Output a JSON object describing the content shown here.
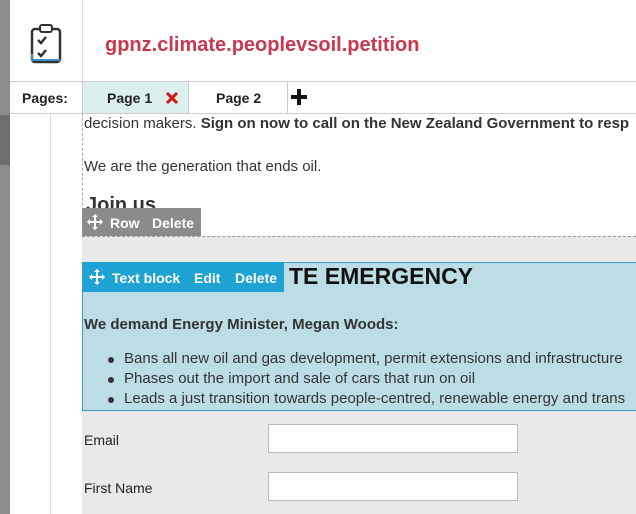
{
  "header": {
    "title": "gpnz.climate.peoplevsoil.petition"
  },
  "tabs": {
    "label": "Pages:",
    "items": [
      "Page 1",
      "Page 2"
    ]
  },
  "content": {
    "intro_plain": "decision makers.",
    "intro_bold": "Sign on now to call on the New Zealand Government to resp",
    "paragraph": "We are the generation that ends oil.",
    "heading": "Join us"
  },
  "row_toolbar": {
    "label": "Row",
    "delete": "Delete"
  },
  "text_block_toolbar": {
    "label": "Text block",
    "edit": "Edit",
    "delete": "Delete"
  },
  "text_block": {
    "heading": "TE EMERGENCY",
    "demand": "We demand Energy Minister, Megan Woods:",
    "bullets": [
      "Bans all new oil and gas development, permit extensions and infrastructure",
      "Phases out the import and sale of cars that run on oil",
      "Leads a just transition towards people-centred, renewable energy and trans"
    ]
  },
  "form": {
    "fields": [
      "Email",
      "First Name"
    ]
  }
}
